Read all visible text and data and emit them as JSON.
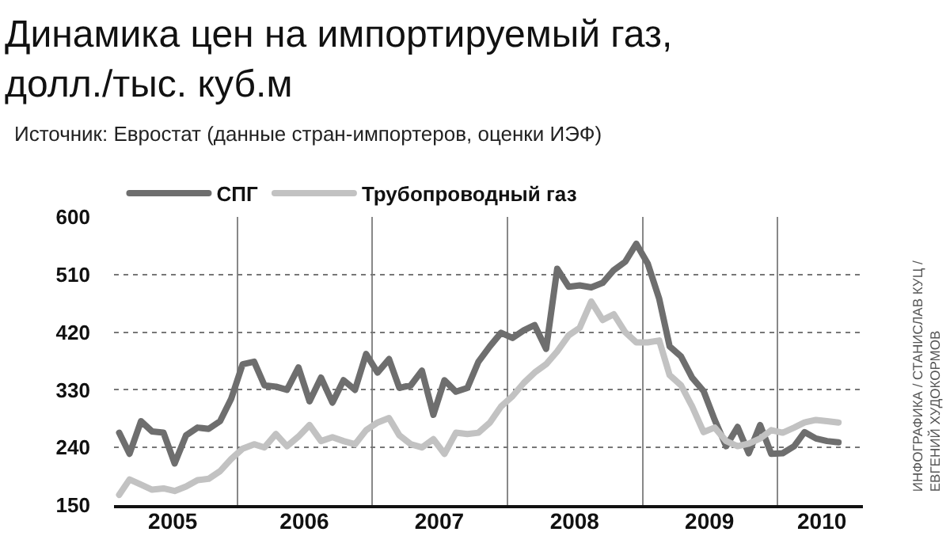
{
  "chart_data": {
    "type": "line",
    "title": "Динамика цен на импортируемый газ,\nдолл./тыс. куб.м",
    "subtitle": "Источник: Евростат (данные стран-импортеров, оценки ИЭФ)",
    "annotations": [
      "ИНФОГРАФИКА / СТАНИСЛАВ КУЦ /\nЕВГЕНИЙ ХУДОКОРМОВ"
    ],
    "x": [
      "2005-02-15",
      "2005-03-15",
      "2005-04-15",
      "2005-05-15",
      "2005-06-15",
      "2005-07-15",
      "2005-08-15",
      "2005-09-15",
      "2005-10-15",
      "2005-11-15",
      "2005-12-15",
      "2006-01-15",
      "2006-02-15",
      "2006-03-15",
      "2006-04-15",
      "2006-05-15",
      "2006-06-15",
      "2006-07-15",
      "2006-08-15",
      "2006-09-15",
      "2006-10-15",
      "2006-11-15",
      "2006-12-15",
      "2007-01-15",
      "2007-02-15",
      "2007-03-15",
      "2007-04-15",
      "2007-05-15",
      "2007-06-15",
      "2007-07-15",
      "2007-08-15",
      "2007-09-15",
      "2007-10-15",
      "2007-11-15",
      "2007-12-15",
      "2008-01-15",
      "2008-02-15",
      "2008-03-15",
      "2008-04-15",
      "2008-05-15",
      "2008-06-15",
      "2008-07-15",
      "2008-08-15",
      "2008-09-15",
      "2008-10-15",
      "2008-11-15",
      "2008-12-15",
      "2009-01-15",
      "2009-02-15",
      "2009-03-15",
      "2009-04-15",
      "2009-05-15",
      "2009-06-15",
      "2009-07-15",
      "2009-08-15",
      "2009-09-15",
      "2009-10-15",
      "2009-11-15",
      "2009-12-15",
      "2010-01-15",
      "2010-02-15",
      "2010-03-15",
      "2010-04-15",
      "2010-05-15",
      "2010-06-15"
    ],
    "series": [
      {
        "name": "СПГ",
        "color": "#6e6e6e",
        "values": [
          263,
          230,
          281,
          265,
          263,
          215,
          259,
          271,
          269,
          281,
          316,
          370,
          374,
          337,
          335,
          330,
          365,
          312,
          349,
          310,
          345,
          330,
          386,
          357,
          378,
          333,
          337,
          360,
          291,
          345,
          327,
          333,
          374,
          398,
          419,
          411,
          423,
          431,
          394,
          519,
          491,
          493,
          490,
          497,
          517,
          530,
          558,
          527,
          472,
          398,
          382,
          349,
          328,
          283,
          242,
          272,
          231,
          275,
          230,
          231,
          242,
          264,
          254,
          250,
          248
        ]
      },
      {
        "name": "Трубопроводный газ",
        "color": "#c2c2c2",
        "values": [
          166,
          190,
          182,
          174,
          176,
          172,
          179,
          189,
          191,
          203,
          222,
          238,
          245,
          240,
          261,
          242,
          257,
          275,
          250,
          256,
          250,
          245,
          267,
          279,
          286,
          259,
          245,
          240,
          253,
          230,
          263,
          261,
          263,
          279,
          304,
          320,
          341,
          357,
          370,
          390,
          415,
          427,
          468,
          439,
          448,
          420,
          404,
          404,
          407,
          353,
          337,
          304,
          264,
          271,
          250,
          242,
          246,
          254,
          267,
          263,
          271,
          279,
          283,
          281,
          279
        ]
      }
    ],
    "xlim": [
      "2005-02-01",
      "2010-08-20"
    ],
    "xticks": [
      {
        "value": "2006-01-01",
        "label": null
      },
      {
        "value": "2007-01-01",
        "label": null
      },
      {
        "value": "2008-01-01",
        "label": null
      },
      {
        "value": "2009-01-01",
        "label": null
      },
      {
        "value": "2010-01-01",
        "label": null
      },
      {
        "value": "2005-07-10",
        "label": "2005"
      },
      {
        "value": "2006-07-01",
        "label": "2006"
      },
      {
        "value": "2007-07-01",
        "label": "2007"
      },
      {
        "value": "2008-07-01",
        "label": "2008"
      },
      {
        "value": "2009-07-01",
        "label": "2009"
      },
      {
        "value": "2010-05-01",
        "label": "2010"
      }
    ],
    "ylim": [
      150,
      600
    ],
    "yticks": [
      150,
      240,
      330,
      420,
      510,
      600
    ],
    "grid": true,
    "legend": "top left",
    "marker": "none",
    "line_style": "solid"
  }
}
